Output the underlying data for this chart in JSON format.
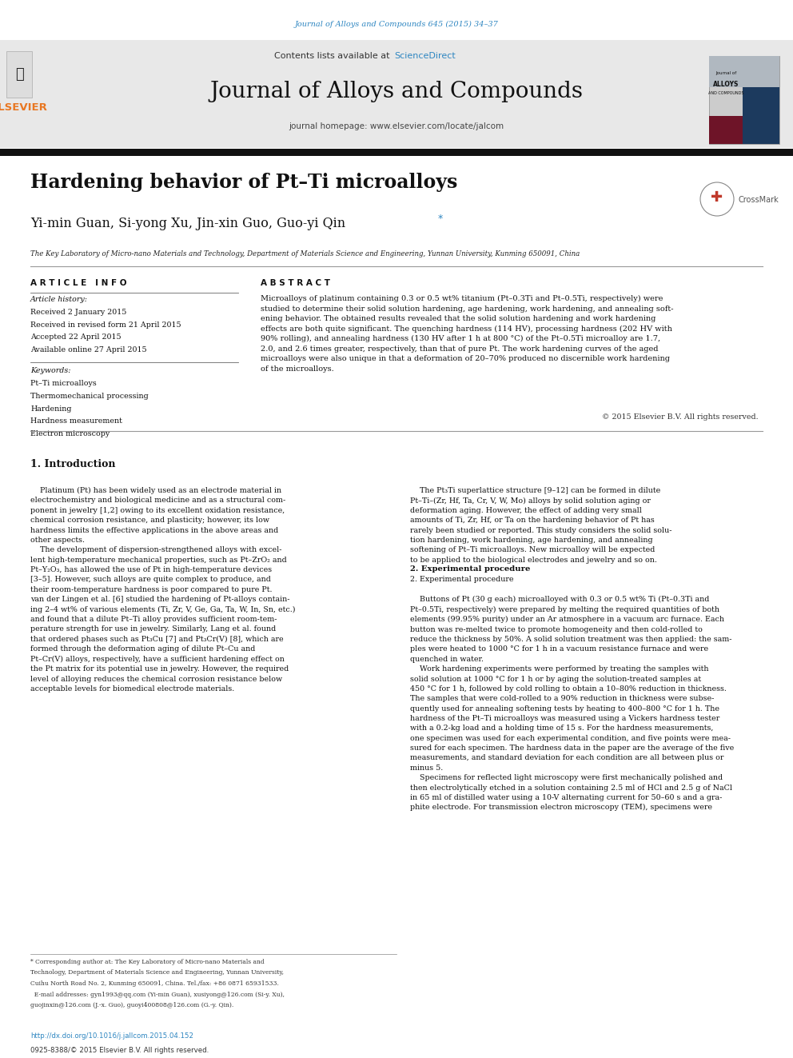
{
  "page_width": 9.92,
  "page_height": 13.23,
  "bg_color": "#ffffff",
  "journal_ref": "Journal of Alloys and Compounds 645 (2015) 34–37",
  "journal_ref_color": "#2e86c1",
  "header_bg": "#e8e8e8",
  "sciencedirect_color": "#2e86c1",
  "journal_name": "Journal of Alloys and Compounds",
  "journal_homepage": "journal homepage: www.elsevier.com/locate/jalcom",
  "dark_bar_color": "#1a1a1a",
  "title": "Hardening behavior of Pt–Ti microalloys",
  "authors": "Yi-min Guan, Si-yong Xu, Jin-xin Guo, Guo-yi Qin",
  "affiliation": "The Key Laboratory of Micro-nano Materials and Technology, Department of Materials Science and Engineering, Yunnan University, Kunming 650091, China",
  "article_info_header": "A R T I C L E   I N F O",
  "abstract_header": "A B S T R A C T",
  "received": "Received 2 January 2015",
  "received_revised": "Received in revised form 21 April 2015",
  "accepted": "Accepted 22 April 2015",
  "available": "Available online 27 April 2015",
  "keywords": [
    "Pt–Ti microalloys",
    "Thermomechanical processing",
    "Hardening",
    "Hardness measurement",
    "Electron microscopy"
  ],
  "abstract_text": "Microalloys of platinum containing 0.3 or 0.5 wt% titanium (Pt–0.3Ti and Pt–0.5Ti, respectively) were\nstudied to determine their solid solution hardening, age hardening, work hardening, and annealing soft-\nening behavior. The obtained results revealed that the solid solution hardening and work hardening\neffects are both quite significant. The quenching hardness (114 HV), processing hardness (202 HV with\n90% rolling), and annealing hardness (130 HV after 1 h at 800 °C) of the Pt–0.5Ti microalloy are 1.7,\n2.0, and 2.6 times greater, respectively, than that of pure Pt. The work hardening curves of the aged\nmicroalloys were also unique in that a deformation of 20–70% produced no discernible work hardening\nof the microalloys.",
  "copyright": "© 2015 Elsevier B.V. All rights reserved.",
  "intro_header": "1. Introduction",
  "intro_col1_para1": "    Platinum (Pt) has been widely used as an electrode material in\nelectrochemistry and biological medicine and as a structural com-\nponent in jewelry [1,2] owing to its excellent oxidation resistance,\nchemical corrosion resistance, and plasticity; however, its low\nhardness limits the effective applications in the above areas and\nother aspects.",
  "intro_col1_para2": "    The development of dispersion-strengthened alloys with excel-\nlent high-temperature mechanical properties, such as Pt–ZrO₂ and\nPt–Y₂O₃, has allowed the use of Pt in high-temperature devices\n[3–5]. However, such alloys are quite complex to produce, and\ntheir room-temperature hardness is poor compared to pure Pt.\nvan der Lingen et al. [6] studied the hardening of Pt-alloys contain-\ning 2–4 wt% of various elements (Ti, Zr, V, Ge, Ga, Ta, W, In, Sn, etc.)\nand found that a dilute Pt–Ti alloy provides sufficient room-tem-\nperature strength for use in jewelry. Similarly, Lang et al. found\nthat ordered phases such as Pt₃Cu [7] and Pt₃Cr(V) [8], which are\nformed through the deformation aging of dilute Pt–Cu and\nPt–Cr(V) alloys, respectively, have a sufficient hardening effect on\nthe Pt matrix for its potential use in jewelry. However, the required\nlevel of alloying reduces the chemical corrosion resistance below\nacceptable levels for biomedical electrode materials.",
  "intro_col2_para1": "    The Pt₃Ti superlattice structure [9–12] can be formed in dilute\nPt–Ti–(Zr, Hf, Ta, Cr, V, W, Mo) alloys by solid solution aging or\ndeformation aging. However, the effect of adding very small\namounts of Ti, Zr, Hf, or Ta on the hardening behavior of Pt has\nrarely been studied or reported. This study considers the solid solu-\ntion hardening, work hardening, age hardening, and annealing\nsoftening of Pt–Ti microalloys. New microalloy will be expected\nto be applied to the biological electrodes and jewelry and so on.",
  "exp_header": "2. Experimental procedure",
  "intro_col2_para2": "    Buttons of Pt (30 g each) microalloyed with 0.3 or 0.5 wt% Ti (Pt–0.3Ti and\nPt–0.5Ti, respectively) were prepared by melting the required quantities of both\nelements (99.95% purity) under an Ar atmosphere in a vacuum arc furnace. Each\nbutton was re-melted twice to promote homogeneity and then cold-rolled to\nreduce the thickness by 50%. A solid solution treatment was then applied: the sam-\nples were heated to 1000 °C for 1 h in a vacuum resistance furnace and were\nquenched in water.\n    Work hardening experiments were performed by treating the samples with\nsolid solution at 1000 °C for 1 h or by aging the solution-treated samples at\n450 °C for 1 h, followed by cold rolling to obtain a 10–80% reduction in thickness.\nThe samples that were cold-rolled to a 90% reduction in thickness were subse-\nquently used for annealing softening tests by heating to 400–800 °C for 1 h. The\nhardness of the Pt–Ti microalloys was measured using a Vickers hardness tester\nwith a 0.2-kg load and a holding time of 15 s. For the hardness measurements,\none specimen was used for each experimental condition, and five points were mea-\nsured for each specimen. The hardness data in the paper are the average of the five\nmeasurements, and standard deviation for each condition are all between plus or\nminus 5.\n    Specimens for reflected light microscopy were first mechanically polished and\nthen electrolytically etched in a solution containing 2.5 ml of HCl and 2.5 g of NaCl\nin 65 ml of distilled water using a 10-V alternating current for 50–60 s and a gra-\nphite electrode. For transmission electron microscopy (TEM), specimens were",
  "footnote_line1": "* Corresponding author at: The Key Laboratory of Micro-nano Materials and",
  "footnote_line2": "Technology, Department of Materials Science and Engineering, Yunnan University,",
  "footnote_line3": "Cuihu North Road No. 2, Kunming 650091, China. Tel./fax: +86 0871 65931533.",
  "footnote_line4": "  E-mail addresses: gyn1993@qq.com (Yi-min Guan), xusiyong@126.com (Si-y. Xu),",
  "footnote_line5": "guojinxin@126.com (J.-x. Guo), guoyi400808@126.com (G.-y. Qin).",
  "doi_text": "http://dx.doi.org/10.1016/j.jallcom.2015.04.152",
  "issn_text": "0925-8388/© 2015 Elsevier B.V. All rights reserved.",
  "elsevier_orange": "#e87722",
  "link_color": "#2e86c1"
}
